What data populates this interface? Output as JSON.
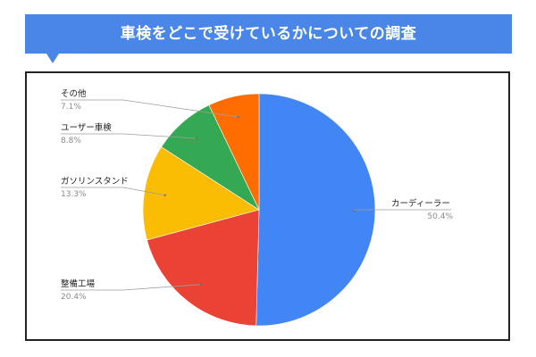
{
  "header": {
    "title": "車検をどこで受けているかについての調査"
  },
  "colors": {
    "banner": "#4a86e8",
    "frame": "#222222"
  },
  "chart_data": {
    "type": "pie",
    "start_angle_deg": 0,
    "direction": "clockwise",
    "slices": [
      {
        "label": "カーディーラー",
        "pct_text": "50.4%",
        "value": 50.4,
        "color": "#4285f4",
        "side": "right"
      },
      {
        "label": "整備工場",
        "pct_text": "20.4%",
        "value": 20.4,
        "color": "#ea4335",
        "side": "left"
      },
      {
        "label": "ガソリンスタンド",
        "pct_text": "13.3%",
        "value": 13.3,
        "color": "#fbbc04",
        "side": "left"
      },
      {
        "label": "ユーザー車検",
        "pct_text": "8.8%",
        "value": 8.8,
        "color": "#34a853",
        "side": "left"
      },
      {
        "label": "その他",
        "pct_text": "7.1%",
        "value": 7.1,
        "color": "#ff6d01",
        "side": "left"
      }
    ]
  }
}
